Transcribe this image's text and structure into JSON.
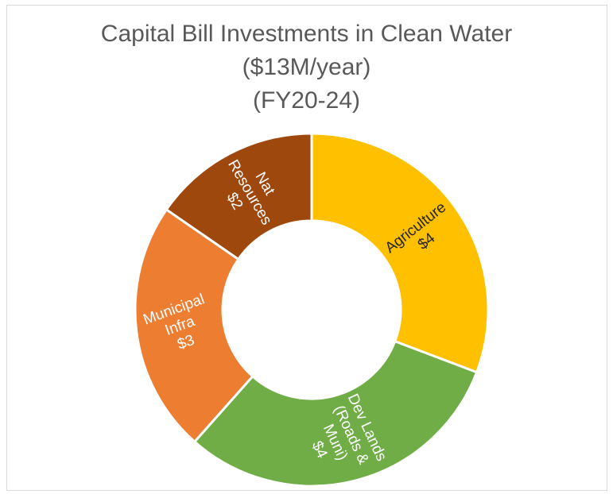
{
  "chart_data": {
    "type": "pie",
    "variant": "donut",
    "title_lines": [
      "Capital Bill Investments in Clean Water",
      "($13M/year)",
      "(FY20-24)"
    ],
    "slices": [
      {
        "label_lines": [
          "Agriculture",
          "$4"
        ],
        "value": 4,
        "color": "#FFC000",
        "text_color": "#262626"
      },
      {
        "label_lines": [
          "Dev Lands",
          "(Roads &",
          "Muni)",
          "$4"
        ],
        "value": 4,
        "color": "#70AD47",
        "text_color": "#ffffff"
      },
      {
        "label_lines": [
          "Municipal",
          "Infra",
          "$3"
        ],
        "value": 3,
        "color": "#ED7D31",
        "text_color": "#ffffff"
      },
      {
        "label_lines": [
          "Nat",
          "Resources",
          "$2"
        ],
        "value": 2,
        "color": "#9E480E",
        "text_color": "#ffffff"
      }
    ],
    "legend": "none"
  }
}
